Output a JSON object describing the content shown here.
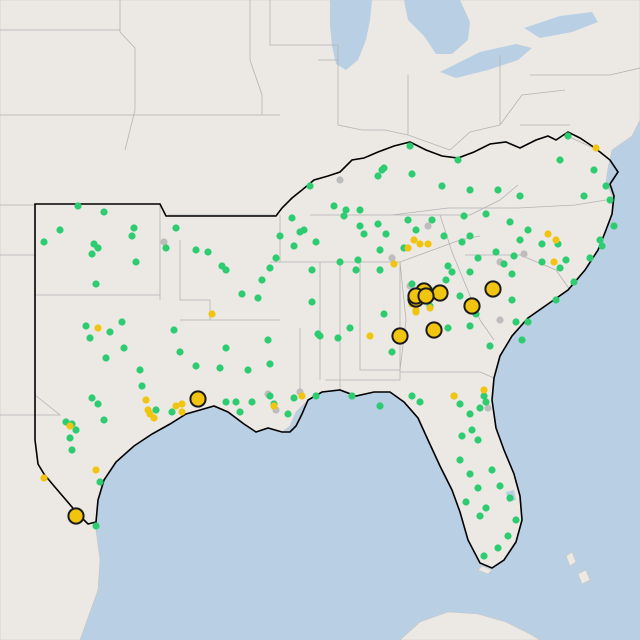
{
  "map": {
    "colors": {
      "water": "#b9cfe3",
      "land": "#ece9e5",
      "border": "#b3b3b3",
      "region_outline": "#000000",
      "marker_green": "#2ecc71",
      "marker_yellow": "#f1c40f",
      "marker_gray": "#bdbdbd",
      "marker_large_outline": "#1a1a1a"
    },
    "legend": "none",
    "marker_counts": {
      "green": 170,
      "yellow_small": 28,
      "yellow_large": 11,
      "gray": 9
    }
  }
}
